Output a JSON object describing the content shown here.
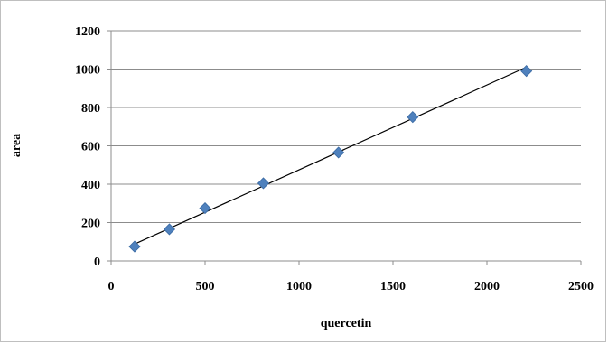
{
  "chart_data": {
    "type": "scatter",
    "xlabel": "quercetin",
    "ylabel": "area",
    "xlim": [
      0,
      2500
    ],
    "ylim": [
      0,
      1200
    ],
    "x_ticks": [
      0,
      500,
      1000,
      1500,
      2000,
      2500
    ],
    "y_ticks": [
      0,
      200,
      400,
      600,
      800,
      1000,
      1200
    ],
    "grid": "horizontal",
    "legend": "none",
    "series": [
      {
        "marker": "diamond",
        "color": "#4f81bd",
        "points": [
          {
            "x": 125,
            "y": 75
          },
          {
            "x": 310,
            "y": 165
          },
          {
            "x": 500,
            "y": 275
          },
          {
            "x": 810,
            "y": 405
          },
          {
            "x": 1210,
            "y": 565
          },
          {
            "x": 1605,
            "y": 750
          },
          {
            "x": 2210,
            "y": 990
          }
        ]
      }
    ],
    "trendline": {
      "type": "linear",
      "color": "#000000",
      "from": {
        "x": 125,
        "y": 88
      },
      "to": {
        "x": 2210,
        "y": 1010
      }
    }
  }
}
